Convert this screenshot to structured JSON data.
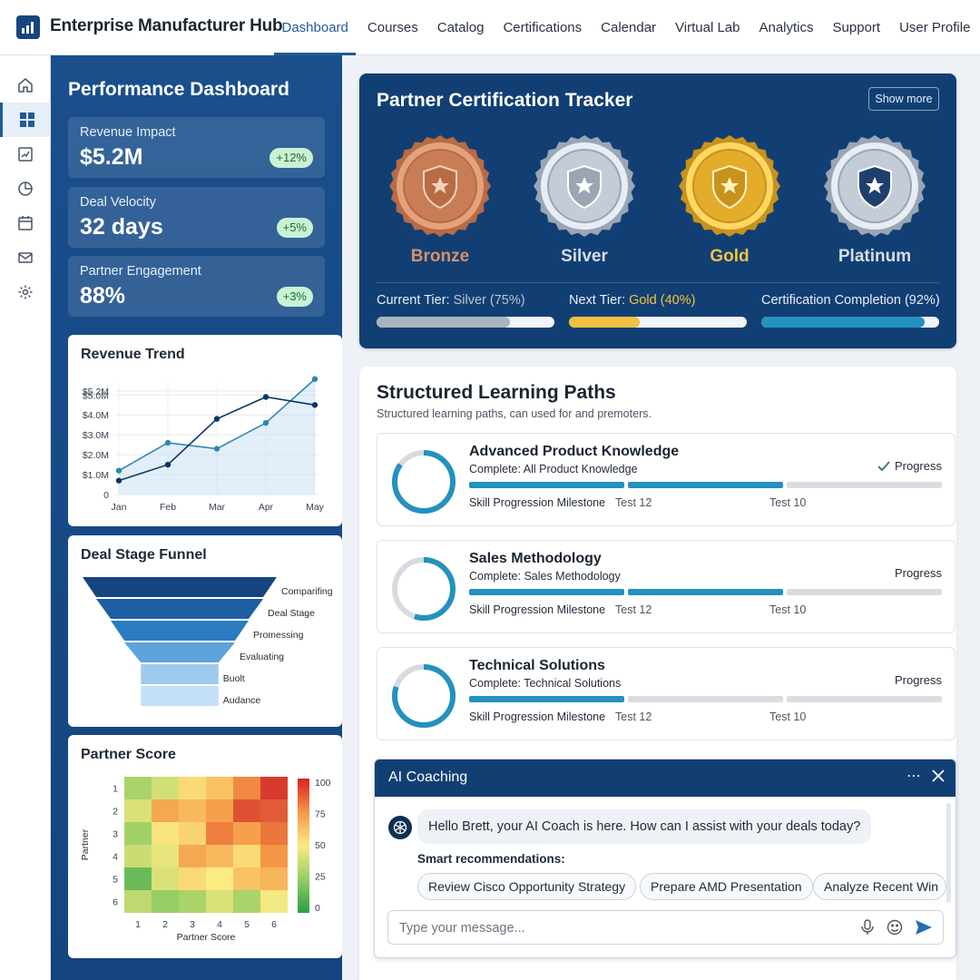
{
  "app": {
    "title": "Enterprise Manufacturer Hub"
  },
  "nav": [
    {
      "label": "Dashboard",
      "active": true
    },
    {
      "label": "Courses"
    },
    {
      "label": "Catalog"
    },
    {
      "label": "Certifications"
    },
    {
      "label": "Calendar"
    },
    {
      "label": "Virtual Lab"
    },
    {
      "label": "Analytics"
    },
    {
      "label": "Support"
    },
    {
      "label": "User Profile"
    }
  ],
  "rail": [
    "home-icon",
    "dashboard-grid-icon",
    "reports-icon",
    "pie-chart-icon",
    "calendar-icon",
    "mail-icon",
    "settings-gear-icon"
  ],
  "performance": {
    "title": "Performance Dashboard",
    "kpis": [
      {
        "label": "Revenue Impact",
        "value": "$5.2M",
        "change": "+12%"
      },
      {
        "label": "Deal Velocity",
        "value": "32 days",
        "change": "+5%"
      },
      {
        "label": "Partner Engagement",
        "value": "88%",
        "change": "+3%"
      }
    ]
  },
  "revenue_trend": {
    "title": "Revenue Trend",
    "chart_data": {
      "type": "line",
      "title": "Revenue Trend",
      "categories": [
        "Jan",
        "Feb",
        "Mar",
        "Apr",
        "May"
      ],
      "y_ticks": [
        "0",
        "$1.0M",
        "$2.0M",
        "$3.0M",
        "$4.0M",
        "$5.0M",
        "$5.2M"
      ],
      "ylim": [
        0,
        5.2
      ],
      "series": [
        {
          "values": [
            1.2,
            2.6,
            2.3,
            3.6,
            5.8
          ],
          "color": "#2e86b5",
          "area": true
        },
        {
          "values": [
            0.7,
            1.5,
            3.8,
            4.9,
            4.5
          ],
          "color": "#0f3566",
          "area": false
        }
      ]
    }
  },
  "funnel": {
    "title": "Deal Stage Funnel",
    "chart_data": {
      "type": "bar",
      "title": "Deal Stage Funnel",
      "categories": [
        "Comparifing",
        "Deal Stage",
        "Promessing",
        "Evaluating",
        "Buolt",
        "Audance"
      ],
      "values": [
        100,
        86,
        71,
        57,
        40,
        40
      ],
      "colors": [
        "#15457e",
        "#1d5ea3",
        "#2b7cc0",
        "#5ca3da",
        "#9fcaf0",
        "#c4e0f7"
      ]
    }
  },
  "partner_score": {
    "title": "Partner Score",
    "chart_data": {
      "type": "heatmap",
      "title": "Partner Score",
      "xlabel": "Partner Score",
      "ylabel": "Partner",
      "x_ticks": [
        "1",
        "2",
        "3",
        "4",
        "5",
        "6"
      ],
      "y_ticks": [
        "1",
        "2",
        "3",
        "4",
        "5",
        "6"
      ],
      "colorbar_ticks": [
        "100",
        "75",
        "50",
        "25",
        "0"
      ],
      "range": [
        0,
        100
      ],
      "values": [
        [
          30,
          40,
          55,
          62,
          78,
          95
        ],
        [
          42,
          70,
          65,
          72,
          90,
          88
        ],
        [
          28,
          52,
          57,
          80,
          72,
          82
        ],
        [
          38,
          45,
          70,
          65,
          55,
          75
        ],
        [
          15,
          42,
          55,
          50,
          62,
          66
        ],
        [
          35,
          25,
          30,
          42,
          30,
          48
        ]
      ]
    }
  },
  "tracker": {
    "title": "Partner Certification Tracker",
    "show_more": "Show more",
    "medals": [
      {
        "name": "Bronze",
        "color": "#d8916a"
      },
      {
        "name": "Silver",
        "color": "#d5dde7"
      },
      {
        "name": "Gold",
        "color": "#f3c43e"
      },
      {
        "name": "Platinum",
        "color": "#d5dde7"
      }
    ],
    "tiers": [
      {
        "label": "Current Tier:",
        "value": "Silver (75%)",
        "value_color": "#b9c6d6",
        "progress": 0.75,
        "fill": "#a9b4c1"
      },
      {
        "label": "Next Tier:",
        "value": "Gold (40%)",
        "value_color": "#f3c43e",
        "progress": 0.4,
        "fill": "#f0c042"
      },
      {
        "label": "Certification Completion",
        "value": "(92%)",
        "value_color": "#e6eefb",
        "progress": 0.92,
        "fill": "#2491bf"
      }
    ]
  },
  "paths": {
    "title": "Structured Learning Paths",
    "subtitle": "Structured learning paths, can used for and premoters.",
    "items": [
      {
        "title": "Advanced Product Knowledge",
        "subtitle": "Complete: All Product Knowledge",
        "status": "Progress",
        "checked": true,
        "progress": 0.85,
        "segments": [
          1,
          1,
          0
        ],
        "milestone": "Skill Progression Milestone",
        "test_a": "Test 12",
        "test_b": "Test 10"
      },
      {
        "title": "Sales Methodology",
        "subtitle": "Complete: Sales Methodology",
        "status": "Progress",
        "checked": false,
        "progress": 0.55,
        "segments": [
          1,
          1,
          0
        ],
        "milestone": "Skill Progression Milestone",
        "test_a": "Test 12",
        "test_b": "Test 10"
      },
      {
        "title": "Technical Solutions",
        "subtitle": "Complete: Technical Solutions",
        "status": "Progress",
        "checked": false,
        "progress": 0.8,
        "segments": [
          1,
          0,
          0
        ],
        "milestone": "Skill Progression Milestone",
        "test_a": "Test 12",
        "test_b": "Test 10"
      }
    ]
  },
  "coach": {
    "title": "AI Coaching",
    "greeting": "Hello Brett, your AI Coach is here. How can I assist with your deals today?",
    "smart_label": "Smart recommendations:",
    "chips": [
      "Review Cisco Opportunity Strategy",
      "Prepare AMD Presentation",
      "Analyze Recent Win"
    ],
    "placeholder": "Type your message..."
  }
}
